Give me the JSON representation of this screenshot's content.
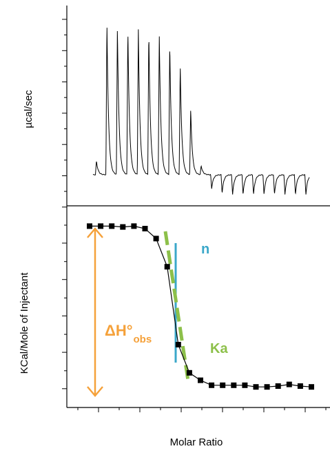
{
  "chart_data": [
    {
      "panel": "top",
      "type": "line",
      "ylabel": "µcal/sec",
      "xlabel": "",
      "grid": false,
      "injection_peaks": {
        "units": "relative (baseline = 0, largest peak = 1)",
        "values": [
          0.09,
          1.0,
          0.97,
          0.96,
          0.95,
          0.94,
          0.92,
          0.86,
          0.72,
          0.43,
          0.06,
          -0.09,
          -0.12,
          -0.13,
          -0.13,
          -0.13,
          -0.13,
          -0.13,
          -0.13,
          -0.13,
          -0.13,
          -0.13,
          -0.13
        ]
      }
    },
    {
      "panel": "bottom",
      "type": "scatter",
      "xlabel": "Molar Ratio",
      "ylabel": "KCal/Mole of Injectant",
      "grid": false,
      "series": [
        {
          "points": {
            "x": [
              1,
              2,
              3,
              4,
              5,
              6,
              7,
              8,
              9,
              10,
              11,
              12,
              13,
              14,
              15,
              16,
              17,
              18,
              19,
              20,
              21
            ],
            "y": [
              -0.02,
              -0.02,
              -0.02,
              -0.03,
              -0.02,
              -0.05,
              -0.17,
              -0.51,
              -1.45,
              -1.79,
              -1.88,
              -1.94,
              -1.94,
              -1.94,
              -1.94,
              -1.96,
              -1.96,
              -1.95,
              -1.93,
              -1.95,
              -1.96
            ]
          },
          "marker": "square",
          "color": "#000000"
        }
      ],
      "annotations": {
        "delta_h": {
          "main": "ΔH°",
          "sub": "obs",
          "color": "#f5a13a"
        },
        "n": {
          "text": "n",
          "color": "#3aa7c9"
        },
        "ka": {
          "text": "Ka",
          "color": "#8dc04a"
        }
      }
    }
  ]
}
